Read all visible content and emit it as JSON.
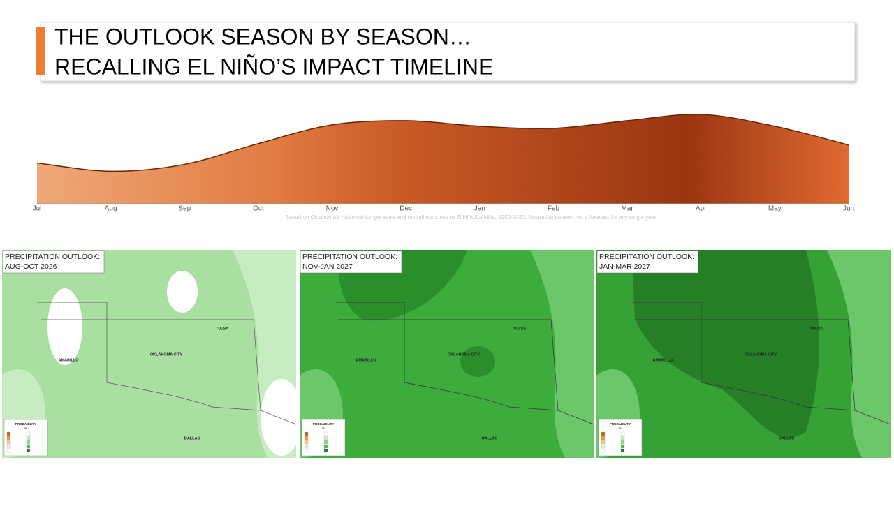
{
  "header": {
    "title_lines": [
      "THE OUTLOOK SEASON BY SEASON…",
      "RECALLING EL NIÑO’S IMPACT TIMELINE"
    ]
  },
  "chart_data": {
    "type": "area",
    "categories": [
      "Jul",
      "Aug",
      "Sep",
      "Oct",
      "Nov",
      "Dec",
      "Jan",
      "Feb",
      "Mar",
      "Apr",
      "May",
      "Jun"
    ],
    "values": [
      59,
      47,
      57,
      87,
      114,
      120,
      112,
      109,
      120,
      129,
      112,
      85
    ],
    "ylim": [
      0,
      130
    ],
    "note": "Based on Oklahoma’s historical temperature and rainfall response to El Niño/La Niña, 1950-2020. Illustrative pattern, not a forecast for any single year."
  },
  "maps": [
    {
      "title": "PRECIPITATION OUTLOOK:",
      "period": "AUG-OCT 2026"
    },
    {
      "title": "PRECIPITATION OUTLOOK:",
      "period": "NOV-JAN 2027"
    },
    {
      "title": "PRECIPITATION OUTLOOK:",
      "period": "JAN-MAR 2027"
    }
  ],
  "map_labels": {
    "cities": [
      "AMARILLO",
      "OKLAHOMA CITY",
      "TULSA",
      "DALLAS"
    ],
    "legend_title": "PROBABILITY",
    "legend_unit": "%"
  }
}
